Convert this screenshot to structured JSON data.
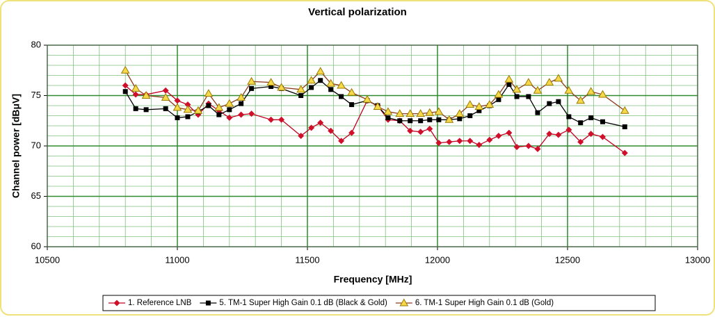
{
  "chart_data": {
    "type": "line",
    "title": "Vertical polarization",
    "xlabel": "Frequency [MHz]",
    "ylabel": "Channel power [dBμV]",
    "x": [
      10800,
      10840,
      10880,
      10955,
      11000,
      11040,
      11080,
      11120,
      11160,
      11200,
      11245,
      11285,
      11360,
      11400,
      11475,
      11515,
      11550,
      11590,
      11630,
      11670,
      11730,
      11770,
      11810,
      11855,
      11895,
      11935,
      11970,
      12005,
      12045,
      12085,
      12125,
      12160,
      12200,
      12235,
      12275,
      12305,
      12350,
      12385,
      12430,
      12465,
      12505,
      12550,
      12590,
      12635,
      12720
    ],
    "series": [
      {
        "name": "1. Reference LNB",
        "color": "#c0001e",
        "marker": "diamond",
        "marker_color": "#d0102a",
        "values": [
          76.0,
          75.1,
          75.1,
          75.5,
          74.5,
          74.1,
          73.1,
          74.2,
          73.5,
          72.8,
          73.1,
          73.2,
          72.6,
          72.6,
          71.0,
          71.8,
          72.3,
          71.5,
          70.5,
          71.3,
          74.5,
          74.0,
          72.6,
          72.5,
          71.5,
          71.4,
          71.7,
          70.3,
          70.4,
          70.5,
          70.5,
          70.1,
          70.6,
          71.0,
          71.3,
          69.9,
          70.0,
          69.7,
          71.2,
          71.1,
          71.6,
          70.4,
          71.2,
          70.9,
          69.3
        ]
      },
      {
        "name": "5. TM-1 Super High Gain 0.1 dB (Black & Gold)",
        "color": "#000000",
        "marker": "square",
        "marker_color": "#000000",
        "values": [
          75.4,
          73.7,
          73.6,
          73.7,
          72.8,
          72.9,
          73.4,
          74.0,
          73.1,
          73.6,
          74.2,
          75.7,
          75.9,
          75.7,
          75.0,
          75.8,
          76.5,
          75.6,
          74.9,
          74.1,
          74.5,
          74.0,
          72.8,
          72.5,
          72.5,
          72.5,
          72.6,
          72.6,
          72.6,
          72.7,
          73.0,
          73.5,
          74.0,
          74.6,
          76.1,
          74.9,
          74.9,
          73.3,
          74.2,
          74.4,
          72.9,
          72.3,
          72.8,
          72.4,
          71.9
        ]
      },
      {
        "name": "6. TM-1 Super High Gain 0.1 dB (Gold)",
        "color": "#8b3a1a",
        "marker": "triangle",
        "marker_color": "#f5d94a",
        "values": [
          77.5,
          75.7,
          75.0,
          74.8,
          73.8,
          73.6,
          73.5,
          75.2,
          73.8,
          74.2,
          74.8,
          76.4,
          76.3,
          75.8,
          75.6,
          76.5,
          77.4,
          76.2,
          76.0,
          75.3,
          74.6,
          73.9,
          73.4,
          73.2,
          73.2,
          73.2,
          73.3,
          73.4,
          72.6,
          73.2,
          74.1,
          73.9,
          74.1,
          75.1,
          76.6,
          75.6,
          76.3,
          75.5,
          76.3,
          76.7,
          75.5,
          74.5,
          75.4,
          75.1,
          73.5
        ]
      }
    ],
    "xlim": [
      10500,
      13000
    ],
    "xticks": [
      10500,
      11000,
      11500,
      12000,
      12500,
      13000
    ],
    "ylim": [
      60,
      80
    ],
    "yticks": [
      60,
      65,
      70,
      75,
      80
    ],
    "grid": true,
    "legend": "bottom"
  }
}
